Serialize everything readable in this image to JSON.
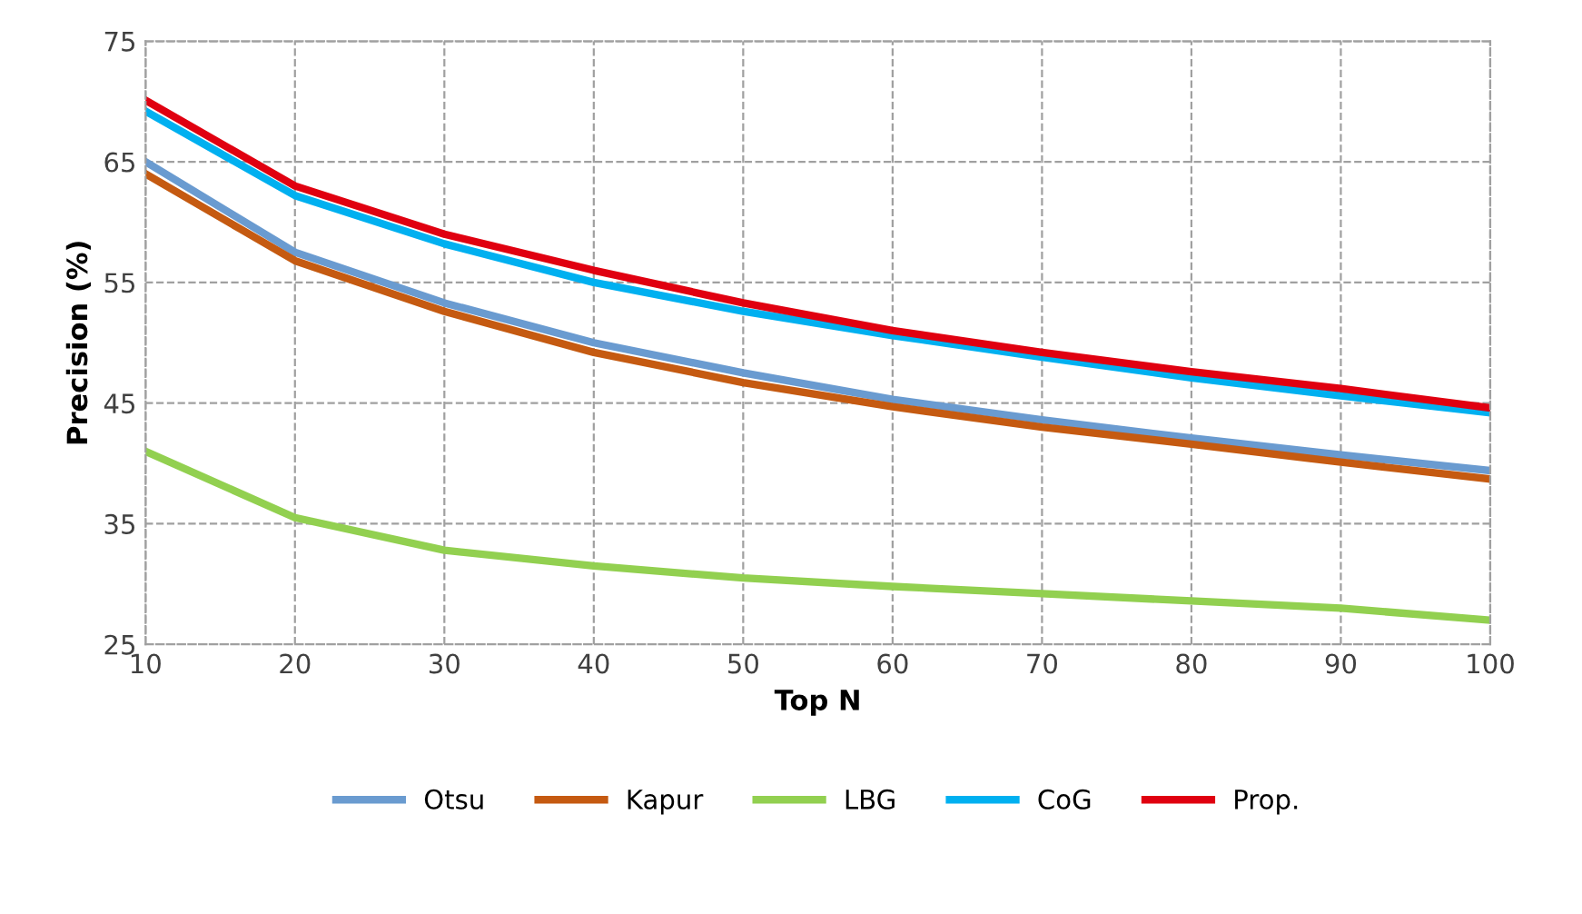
{
  "chart_data": {
    "type": "line",
    "xlabel": "Top N",
    "ylabel": "Precision (%)",
    "x": [
      10,
      20,
      30,
      40,
      50,
      60,
      70,
      80,
      90,
      100
    ],
    "series": [
      {
        "name": "Otsu",
        "color": "#6a9bd0",
        "values": [
          65,
          57.5,
          53.3,
          50,
          47.5,
          45.3,
          43.6,
          42.1,
          40.7,
          39.4
        ]
      },
      {
        "name": "Kapur",
        "color": "#c55a11",
        "values": [
          64,
          56.8,
          52.6,
          49.2,
          46.7,
          44.7,
          43,
          41.6,
          40.1,
          38.7
        ]
      },
      {
        "name": "LBG",
        "color": "#92d050",
        "values": [
          41,
          35.5,
          32.8,
          31.5,
          30.5,
          29.8,
          29.2,
          28.6,
          28,
          27
        ]
      },
      {
        "name": "CoG",
        "color": "#00b0f0",
        "values": [
          69.2,
          62.2,
          58.2,
          55,
          52.6,
          50.6,
          48.8,
          47.1,
          45.6,
          44.2
        ]
      },
      {
        "name": "Prop.",
        "color": "#e00010",
        "values": [
          70.1,
          63,
          59,
          56,
          53.3,
          51,
          49.2,
          47.6,
          46.2,
          44.6
        ]
      }
    ],
    "xlim": [
      10,
      100
    ],
    "xticks": [
      10,
      20,
      30,
      40,
      50,
      60,
      70,
      80,
      90,
      100
    ],
    "ylim": [
      25,
      75
    ],
    "yticks": [
      25,
      35,
      45,
      55,
      65,
      75
    ],
    "grid": true,
    "legend": "bottom",
    "marker": "none",
    "line_style": "solid"
  }
}
